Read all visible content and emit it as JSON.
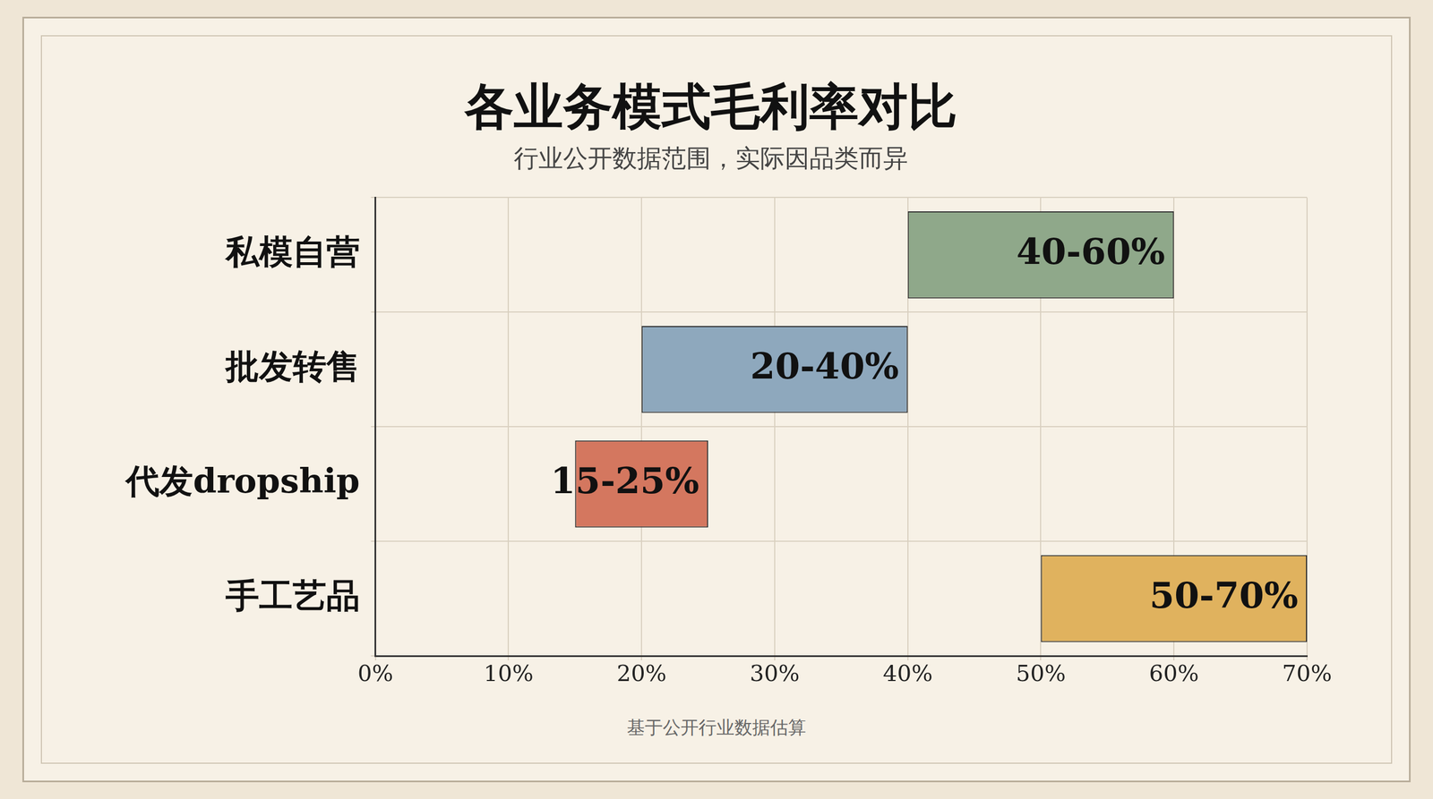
{
  "chart_data": {
    "type": "bar",
    "title": "各业务模式毛利率对比",
    "subtitle": "行业公开数据范围，实际因品类而异",
    "categories": [
      "私模自营",
      "批发转售",
      "代发dropship",
      "手工艺品"
    ],
    "values": [
      [
        40,
        60
      ],
      [
        20,
        40
      ],
      [
        15,
        25
      ],
      [
        50,
        70
      ]
    ],
    "value_labels": [
      "40-60%",
      "20-40%",
      "15-25%",
      "50-70%"
    ],
    "colors": [
      "#8fa88a",
      "#8ea8bd",
      "#d4775f",
      "#e0b25e"
    ],
    "orientation": "horizontal",
    "xlim": [
      0,
      70
    ],
    "xticks": [
      {
        "value": 0,
        "label": "0%"
      },
      {
        "value": 10,
        "label": "10%"
      },
      {
        "value": 20,
        "label": "20%"
      },
      {
        "value": 30,
        "label": "30%"
      },
      {
        "value": 40,
        "label": "40%"
      },
      {
        "value": 50,
        "label": "50%"
      },
      {
        "value": 60,
        "label": "60%"
      },
      {
        "value": 70,
        "label": "70%"
      }
    ],
    "grid": true,
    "data_labels": true,
    "footnote": "基于公开行业数据估算"
  }
}
